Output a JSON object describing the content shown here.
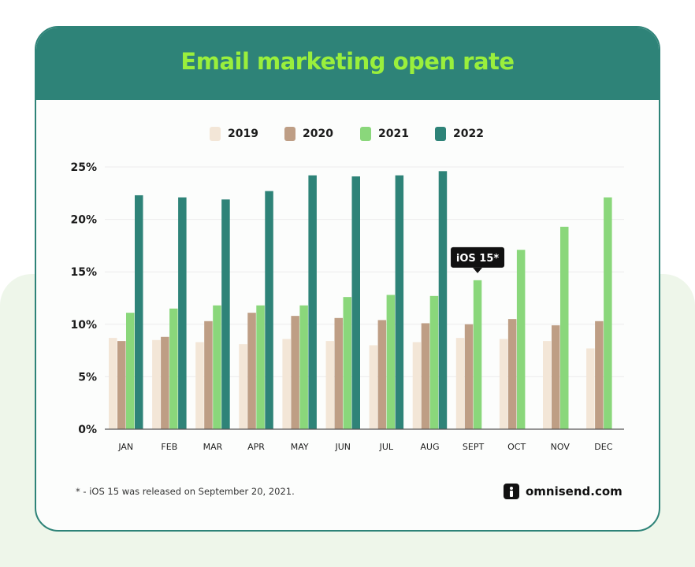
{
  "title": "Email marketing open rate",
  "footnote": "* - iOS 15 was released on September 20, 2021.",
  "brand": "omnisend.com",
  "colors": {
    "header": "#2e8378",
    "title": "#9aef3c",
    "s2019": "#f3e6d7",
    "s2020": "#be9e85",
    "s2021": "#8ad77b",
    "s2022": "#2e8378"
  },
  "chart_data": {
    "type": "bar",
    "categories": [
      "JAN",
      "FEB",
      "MAR",
      "APR",
      "MAY",
      "JUN",
      "JUL",
      "AUG",
      "SEPT",
      "OCT",
      "NOV",
      "DEC"
    ],
    "series": [
      {
        "name": "2019",
        "color": "#f3e6d7",
        "values": [
          8.7,
          8.5,
          8.3,
          8.1,
          8.6,
          8.4,
          8.0,
          8.3,
          8.7,
          8.6,
          8.4,
          7.7
        ]
      },
      {
        "name": "2020",
        "color": "#be9e85",
        "values": [
          8.4,
          8.8,
          10.3,
          11.1,
          10.8,
          10.6,
          10.4,
          10.1,
          10.0,
          10.5,
          9.9,
          10.3
        ]
      },
      {
        "name": "2021",
        "color": "#8ad77b",
        "values": [
          11.1,
          11.5,
          11.8,
          11.8,
          11.8,
          12.6,
          12.8,
          12.7,
          14.2,
          17.1,
          19.3,
          22.1
        ]
      },
      {
        "name": "2022",
        "color": "#2e8378",
        "values": [
          22.3,
          22.1,
          21.9,
          22.7,
          24.2,
          24.1,
          24.2,
          24.6,
          null,
          null,
          null,
          null
        ]
      }
    ],
    "ylim": [
      0,
      25
    ],
    "ytick_labels": [
      "0%",
      "5%",
      "10%",
      "15%",
      "20%",
      "25%"
    ],
    "yticks": [
      0,
      5,
      10,
      15,
      20,
      25
    ],
    "grid": true,
    "legend_placement": "top-center",
    "annotation": {
      "text": "iOS 15*",
      "category": "SEPT",
      "series": "2021"
    }
  }
}
